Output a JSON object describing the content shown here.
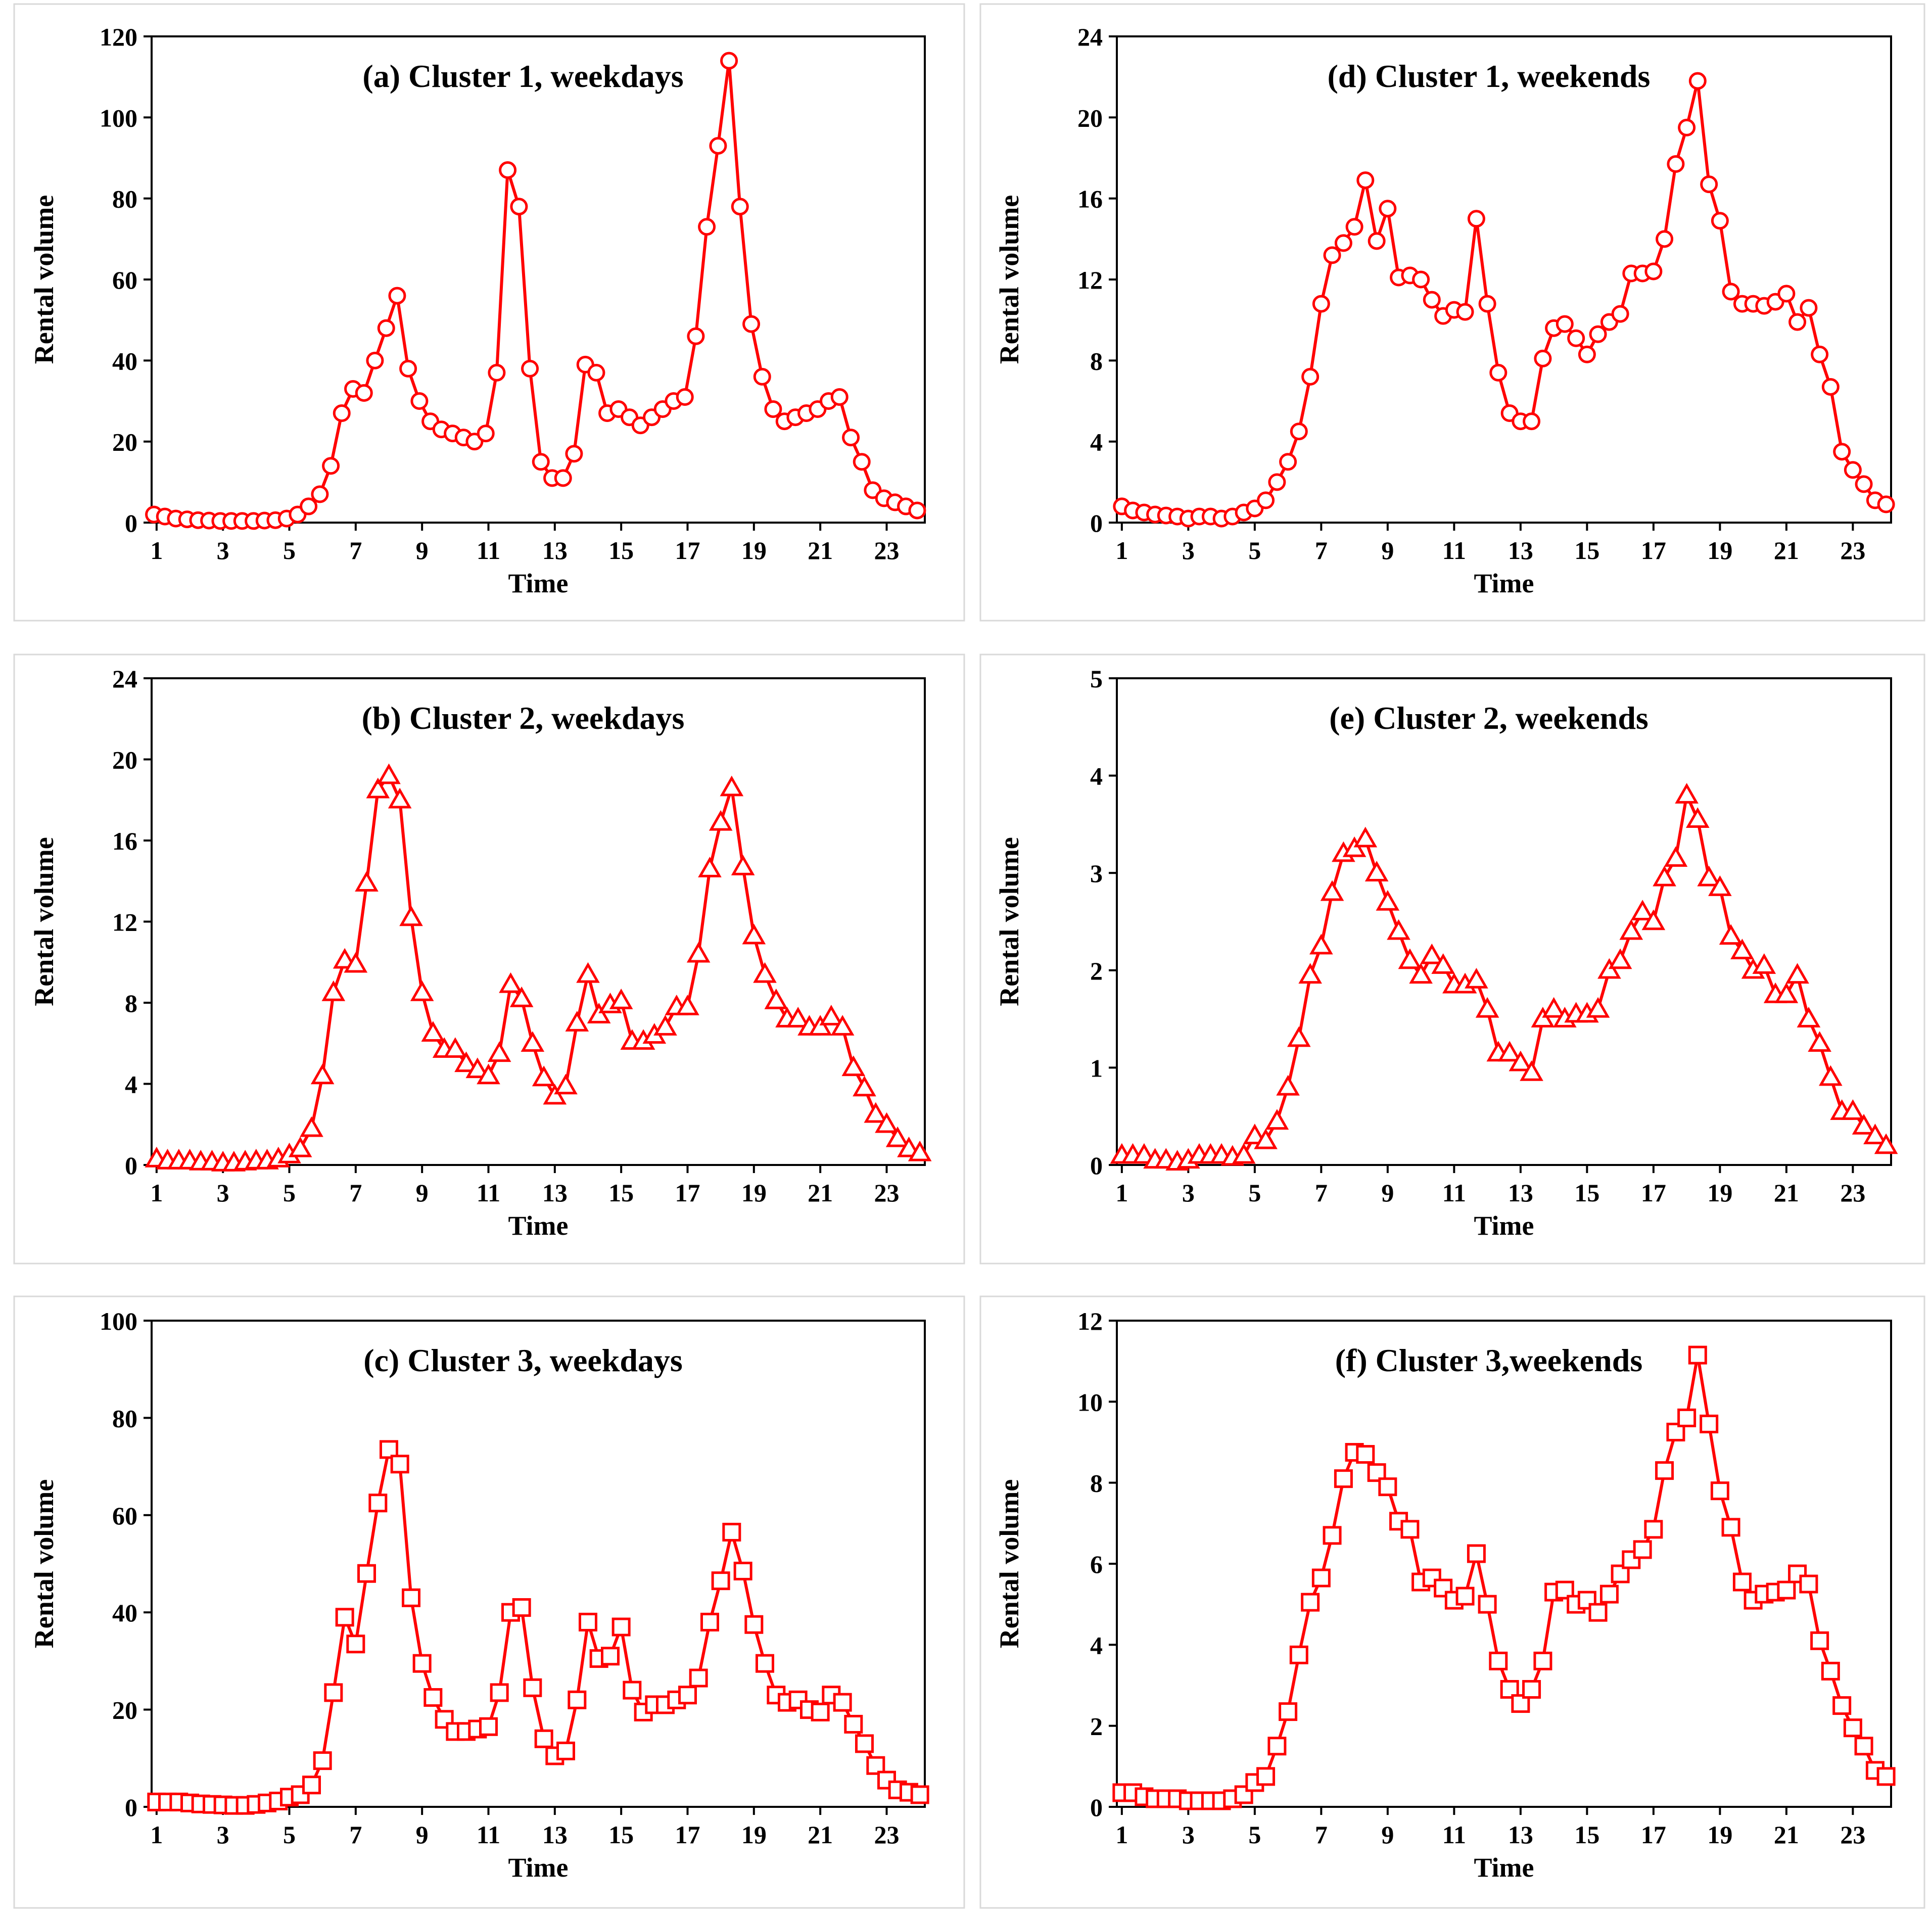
{
  "colors": {
    "series": "#ff0000",
    "axis": "#000000",
    "frame": "#d9d9d9"
  },
  "chart_data": [
    {
      "type": "line",
      "marker": "circle",
      "panel": "a",
      "title": "(a) Cluster  1, weekdays",
      "xlabel": "Time",
      "ylabel": "Rental volume",
      "ylim": [
        0,
        120
      ],
      "yticks": [
        0,
        20,
        40,
        60,
        80,
        100,
        120
      ],
      "xlim": [
        1,
        24
      ],
      "xticks": [
        1,
        3,
        5,
        7,
        9,
        11,
        13,
        15,
        17,
        19,
        21,
        23
      ],
      "x": [
        0.92,
        1.25,
        1.58,
        1.92,
        2.25,
        2.58,
        2.92,
        3.25,
        3.58,
        3.92,
        4.25,
        4.58,
        4.92,
        5.25,
        5.58,
        5.92,
        6.25,
        6.58,
        6.92,
        7.25,
        7.58,
        7.92,
        8.25,
        8.58,
        8.92,
        9.25,
        9.58,
        9.92,
        10.25,
        10.58,
        10.92,
        11.25,
        11.58,
        11.92,
        12.25,
        12.58,
        12.92,
        13.25,
        13.58,
        13.92,
        14.25,
        14.58,
        14.92,
        15.25,
        15.58,
        15.92,
        16.25,
        16.58,
        16.92,
        17.25,
        17.58,
        17.92,
        18.25,
        18.58,
        18.92,
        19.25,
        19.58,
        19.92,
        20.25,
        20.58,
        20.92,
        21.25,
        21.58,
        21.92,
        22.25,
        22.58,
        22.92,
        23.25,
        23.58,
        23.92
      ],
      "values": [
        2,
        1.5,
        1,
        0.8,
        0.6,
        0.5,
        0.4,
        0.4,
        0.4,
        0.4,
        0.5,
        0.6,
        1,
        2,
        4,
        7,
        14,
        27,
        33,
        32,
        40,
        48,
        56,
        38,
        30,
        25,
        23,
        22,
        21,
        20,
        22,
        37,
        87,
        78,
        38,
        15,
        11,
        11,
        17,
        39,
        37,
        27,
        28,
        26,
        24,
        26,
        28,
        30,
        31,
        46,
        73,
        93,
        114,
        78,
        49,
        36,
        28,
        25,
        26,
        27,
        28,
        30,
        31,
        21,
        15,
        8,
        6,
        5,
        4,
        3
      ]
    },
    {
      "type": "line",
      "marker": "triangle",
      "panel": "b",
      "title": "(b) Cluster  2, weekdays",
      "xlabel": "Time",
      "ylabel": "Rental volume",
      "ylim": [
        0,
        24
      ],
      "yticks": [
        0,
        4,
        8,
        12,
        16,
        20,
        24
      ],
      "xlim": [
        1,
        24
      ],
      "xticks": [
        1,
        3,
        5,
        7,
        9,
        11,
        13,
        15,
        17,
        19,
        21,
        23
      ],
      "x": [
        1,
        1.33,
        1.67,
        2,
        2.33,
        2.67,
        3,
        3.33,
        3.67,
        4,
        4.33,
        4.67,
        5,
        5.33,
        5.67,
        6,
        6.33,
        6.67,
        7,
        7.33,
        7.67,
        8,
        8.33,
        8.67,
        9,
        9.33,
        9.67,
        10,
        10.33,
        10.67,
        11,
        11.33,
        11.67,
        12,
        12.33,
        12.67,
        13,
        13.33,
        13.67,
        14,
        14.33,
        14.67,
        15,
        15.33,
        15.67,
        16,
        16.33,
        16.67,
        17,
        17.33,
        17.67,
        18,
        18.33,
        18.67,
        19,
        19.33,
        19.67,
        20,
        20.33,
        20.67,
        21,
        21.33,
        21.67,
        22,
        22.33,
        22.67,
        23,
        23.33,
        23.67,
        24
      ],
      "values": [
        0.3,
        0.2,
        0.2,
        0.2,
        0.15,
        0.15,
        0.1,
        0.1,
        0.15,
        0.2,
        0.2,
        0.3,
        0.5,
        0.8,
        1.8,
        4.4,
        8.5,
        10.1,
        9.9,
        13.9,
        18.5,
        19.2,
        18.0,
        12.2,
        8.5,
        6.5,
        5.7,
        5.7,
        5.0,
        4.7,
        4.4,
        5.5,
        8.9,
        8.2,
        6.0,
        4.3,
        3.4,
        3.9,
        7.0,
        9.4,
        7.4,
        7.9,
        8.1,
        6.1,
        6.1,
        6.4,
        6.8,
        7.8,
        7.8,
        10.4,
        14.6,
        16.9,
        18.6,
        14.7,
        11.3,
        9.4,
        8.1,
        7.2,
        7.2,
        6.8,
        6.8,
        7.3,
        6.8,
        4.8,
        3.8,
        2.5,
        2.0,
        1.3,
        0.8,
        0.6
      ]
    },
    {
      "type": "line",
      "marker": "square",
      "panel": "c",
      "title": "(c) Cluster  3, weekdays",
      "xlabel": "Time",
      "ylabel": "Rental volume",
      "ylim": [
        0,
        100
      ],
      "yticks": [
        0,
        20,
        40,
        60,
        80,
        100
      ],
      "xlim": [
        1,
        24
      ],
      "xticks": [
        1,
        3,
        5,
        7,
        9,
        11,
        13,
        15,
        17,
        19,
        21,
        23
      ],
      "x": [
        1,
        1.33,
        1.67,
        2,
        2.33,
        2.67,
        3,
        3.33,
        3.67,
        4,
        4.33,
        4.67,
        5,
        5.33,
        5.67,
        6,
        6.33,
        6.67,
        7,
        7.33,
        7.67,
        8,
        8.33,
        8.67,
        9,
        9.33,
        9.67,
        10,
        10.33,
        10.67,
        11,
        11.33,
        11.67,
        12,
        12.33,
        12.67,
        13,
        13.33,
        13.67,
        14,
        14.33,
        14.67,
        15,
        15.33,
        15.67,
        16,
        16.33,
        16.67,
        17,
        17.33,
        17.67,
        18,
        18.33,
        18.67,
        19,
        19.33,
        19.67,
        20,
        20.33,
        20.67,
        21,
        21.33,
        21.67,
        22,
        22.33,
        22.67,
        23,
        23.33,
        23.67,
        24
      ],
      "values": [
        1,
        1,
        1,
        0.8,
        0.6,
        0.5,
        0.4,
        0.3,
        0.3,
        0.5,
        0.8,
        1.2,
        2,
        2.5,
        4.5,
        9.5,
        23.5,
        39,
        33.5,
        48,
        62.5,
        73.5,
        70.5,
        43,
        29.5,
        22.5,
        18,
        15.5,
        15.5,
        16,
        16.5,
        23.5,
        40,
        41,
        24.5,
        14,
        10.5,
        11.5,
        22,
        38,
        30.5,
        31,
        37,
        24,
        19.5,
        21,
        21,
        22,
        23,
        26.5,
        38,
        46.5,
        56.5,
        48.5,
        37.5,
        29.5,
        23,
        21.5,
        22,
        20,
        19.5,
        23,
        21.5,
        17,
        13,
        8.5,
        5.5,
        3.5,
        3,
        2.5
      ]
    },
    {
      "type": "line",
      "marker": "circle",
      "panel": "d",
      "title": "(d) Cluster  1, weekends",
      "xlabel": "Time",
      "ylabel": "Rental volume",
      "ylim": [
        0,
        24
      ],
      "yticks": [
        0,
        4,
        8,
        12,
        16,
        20,
        24
      ],
      "xlim": [
        1,
        24
      ],
      "xticks": [
        1,
        3,
        5,
        7,
        9,
        11,
        13,
        15,
        17,
        19,
        21,
        23
      ],
      "x": [
        1,
        1.33,
        1.67,
        2,
        2.33,
        2.67,
        3,
        3.33,
        3.67,
        4,
        4.33,
        4.67,
        5,
        5.33,
        5.67,
        6,
        6.33,
        6.67,
        7,
        7.33,
        7.67,
        8,
        8.33,
        8.67,
        9,
        9.33,
        9.67,
        10,
        10.33,
        10.67,
        11,
        11.33,
        11.67,
        12,
        12.33,
        12.67,
        13,
        13.33,
        13.67,
        14,
        14.33,
        14.67,
        15,
        15.33,
        15.67,
        16,
        16.33,
        16.67,
        17,
        17.33,
        17.67,
        18,
        18.33,
        18.67,
        19,
        19.33,
        19.67,
        20,
        20.33,
        20.67,
        21,
        21.33,
        21.67,
        22,
        22.33,
        22.67,
        23,
        23.33,
        23.67,
        24
      ],
      "values": [
        0.8,
        0.6,
        0.5,
        0.4,
        0.35,
        0.3,
        0.2,
        0.3,
        0.3,
        0.2,
        0.3,
        0.5,
        0.7,
        1.1,
        2.0,
        3.0,
        4.5,
        7.2,
        10.8,
        13.2,
        13.8,
        14.6,
        16.9,
        13.9,
        15.5,
        12.1,
        12.2,
        12.0,
        11.0,
        10.2,
        10.5,
        10.4,
        15.0,
        10.8,
        7.4,
        5.4,
        5.0,
        5.0,
        8.1,
        9.6,
        9.8,
        9.1,
        8.3,
        9.3,
        9.9,
        10.3,
        12.3,
        12.3,
        12.4,
        14.0,
        17.7,
        19.5,
        21.8,
        16.7,
        14.9,
        11.4,
        10.8,
        10.8,
        10.7,
        10.9,
        11.3,
        9.9,
        10.6,
        8.3,
        6.7,
        3.5,
        2.6,
        1.9,
        1.1,
        0.9
      ]
    },
    {
      "type": "line",
      "marker": "triangle",
      "panel": "e",
      "title": "(e) Cluster  2, weekends",
      "xlabel": "Time",
      "ylabel": "Rental volume",
      "ylim": [
        0,
        5
      ],
      "yticks": [
        0,
        1,
        2,
        3,
        4,
        5
      ],
      "xlim": [
        1,
        24
      ],
      "xticks": [
        1,
        3,
        5,
        7,
        9,
        11,
        13,
        15,
        17,
        19,
        21,
        23
      ],
      "x": [
        1,
        1.33,
        1.67,
        2,
        2.33,
        2.67,
        3,
        3.33,
        3.67,
        4,
        4.33,
        4.67,
        5,
        5.33,
        5.67,
        6,
        6.33,
        6.67,
        7,
        7.33,
        7.67,
        8,
        8.33,
        8.67,
        9,
        9.33,
        9.67,
        10,
        10.33,
        10.67,
        11,
        11.33,
        11.67,
        12,
        12.33,
        12.67,
        13,
        13.33,
        13.67,
        14,
        14.33,
        14.67,
        15,
        15.33,
        15.67,
        16,
        16.33,
        16.67,
        17,
        17.33,
        17.67,
        18,
        18.33,
        18.67,
        19,
        19.33,
        19.67,
        20,
        20.33,
        20.67,
        21,
        21.33,
        21.67,
        22,
        22.33,
        22.67,
        23,
        23.33,
        23.67,
        24
      ],
      "values": [
        0.1,
        0.1,
        0.1,
        0.05,
        0.05,
        0.03,
        0.05,
        0.1,
        0.1,
        0.1,
        0.08,
        0.1,
        0.3,
        0.25,
        0.45,
        0.8,
        1.3,
        1.95,
        2.25,
        2.8,
        3.2,
        3.25,
        3.35,
        3.0,
        2.7,
        2.4,
        2.1,
        1.95,
        2.15,
        2.05,
        1.85,
        1.85,
        1.9,
        1.6,
        1.15,
        1.15,
        1.05,
        0.95,
        1.5,
        1.6,
        1.5,
        1.55,
        1.55,
        1.6,
        2.0,
        2.1,
        2.4,
        2.6,
        2.5,
        2.95,
        3.15,
        3.8,
        3.55,
        2.95,
        2.85,
        2.35,
        2.2,
        2.0,
        2.05,
        1.75,
        1.75,
        1.95,
        1.5,
        1.25,
        0.9,
        0.55,
        0.55,
        0.4,
        0.3,
        0.2
      ]
    },
    {
      "type": "line",
      "marker": "square",
      "panel": "f",
      "title": "(f) Cluster  3,weekends",
      "xlabel": "Time",
      "ylabel": "Rental volume",
      "ylim": [
        0,
        12
      ],
      "yticks": [
        0,
        2,
        4,
        6,
        8,
        10,
        12
      ],
      "xlim": [
        1,
        24
      ],
      "xticks": [
        1,
        3,
        5,
        7,
        9,
        11,
        13,
        15,
        17,
        19,
        21,
        23
      ],
      "x": [
        1,
        1.33,
        1.67,
        2,
        2.33,
        2.67,
        3,
        3.33,
        3.67,
        4,
        4.33,
        4.67,
        5,
        5.33,
        5.67,
        6,
        6.33,
        6.67,
        7,
        7.33,
        7.67,
        8,
        8.33,
        8.67,
        9,
        9.33,
        9.67,
        10,
        10.33,
        10.67,
        11,
        11.33,
        11.67,
        12,
        12.33,
        12.67,
        13,
        13.33,
        13.67,
        14,
        14.33,
        14.67,
        15,
        15.33,
        15.67,
        16,
        16.33,
        16.67,
        17,
        17.33,
        17.67,
        18,
        18.33,
        18.67,
        19,
        19.33,
        19.67,
        20,
        20.33,
        20.67,
        21,
        21.33,
        21.67,
        22,
        22.33,
        22.67,
        23,
        23.33,
        23.67,
        24
      ],
      "values": [
        0.35,
        0.35,
        0.25,
        0.2,
        0.2,
        0.2,
        0.15,
        0.15,
        0.15,
        0.15,
        0.2,
        0.3,
        0.6,
        0.75,
        1.5,
        2.35,
        3.75,
        5.05,
        5.65,
        6.7,
        8.1,
        8.75,
        8.7,
        8.25,
        7.9,
        7.05,
        6.85,
        5.55,
        5.65,
        5.4,
        5.1,
        5.2,
        6.25,
        5.0,
        3.6,
        2.9,
        2.55,
        2.9,
        3.6,
        5.3,
        5.35,
        5.0,
        5.1,
        4.8,
        5.25,
        5.75,
        6.1,
        6.35,
        6.85,
        8.3,
        9.25,
        9.6,
        11.15,
        9.45,
        7.8,
        6.9,
        5.55,
        5.1,
        5.25,
        5.3,
        5.35,
        5.75,
        5.5,
        4.1,
        3.35,
        2.5,
        1.95,
        1.5,
        0.9,
        0.75
      ]
    }
  ]
}
